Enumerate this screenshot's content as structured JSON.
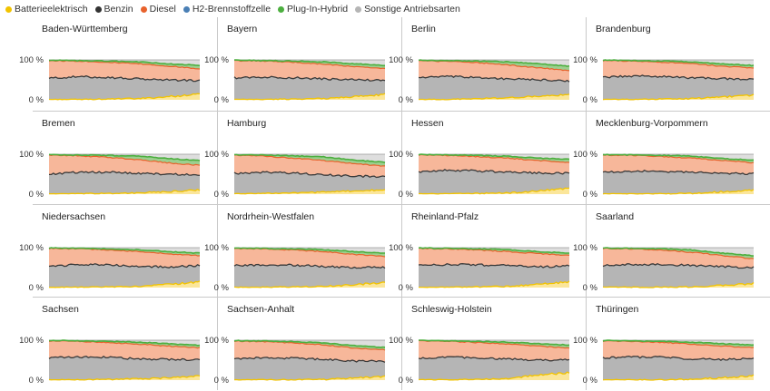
{
  "legend": [
    {
      "label": "Batterieelektrisch",
      "color": "#f2c300"
    },
    {
      "label": "Benzin",
      "color": "#333333"
    },
    {
      "label": "Diesel",
      "color": "#e8622c"
    },
    {
      "label": "H2-Brennstoffzelle",
      "color": "#4a7fb5"
    },
    {
      "label": "Plug-In-Hybrid",
      "color": "#4caf3f"
    },
    {
      "label": "Sonstige Antriebsarten",
      "color": "#b5b5b5"
    }
  ],
  "colors": {
    "battery_fill": "#fbe69a",
    "battery_line": "#f2c300",
    "benzin_fill": "#b5b5b5",
    "benzin_line": "#3a3a3a",
    "diesel_fill": "#f7b79a",
    "diesel_line": "#e8622c",
    "phev_line": "#4caf3f",
    "sonstige_fill": "#dedede",
    "sonstige_line": "#9a9a9a"
  },
  "y_tick_labels": [
    "100 %",
    "0 %"
  ],
  "chart_data": {
    "type": "area",
    "stacking": "percent",
    "ylim": [
      0,
      100
    ],
    "series_order": [
      "Batterieelektrisch",
      "Benzin",
      "Diesel",
      "H2-Brennstoffzelle",
      "Plug-In-Hybrid",
      "Sonstige Antriebsarten"
    ],
    "panels": [
      {
        "title": "Baden-Württemberg",
        "bev": [
          1,
          1,
          2,
          3,
          8,
          14
        ],
        "benzin_top": [
          54,
          58,
          56,
          52,
          50,
          48
        ],
        "diesel_top": [
          98,
          97,
          94,
          90,
          84,
          78
        ],
        "phev_top": [
          98,
          98,
          97,
          95,
          90,
          86
        ]
      },
      {
        "title": "Bayern",
        "bev": [
          1,
          1,
          2,
          3,
          8,
          13
        ],
        "benzin_top": [
          55,
          57,
          55,
          52,
          50,
          49
        ],
        "diesel_top": [
          98,
          97,
          94,
          89,
          83,
          78
        ],
        "phev_top": [
          98,
          98,
          97,
          95,
          90,
          86
        ]
      },
      {
        "title": "Berlin",
        "bev": [
          1,
          1,
          3,
          5,
          9,
          12
        ],
        "benzin_top": [
          56,
          58,
          56,
          52,
          50,
          47
        ],
        "diesel_top": [
          98,
          96,
          93,
          87,
          80,
          73
        ],
        "phev_top": [
          98,
          98,
          97,
          95,
          90,
          84
        ]
      },
      {
        "title": "Brandenburg",
        "bev": [
          1,
          1,
          2,
          3,
          7,
          12
        ],
        "benzin_top": [
          56,
          60,
          58,
          55,
          53,
          52
        ],
        "diesel_top": [
          98,
          97,
          94,
          90,
          84,
          80
        ],
        "phev_top": [
          98,
          98,
          97,
          95,
          90,
          86
        ]
      },
      {
        "title": "Bremen",
        "bev": [
          1,
          1,
          2,
          3,
          6,
          11
        ],
        "benzin_top": [
          50,
          55,
          55,
          52,
          50,
          48
        ],
        "diesel_top": [
          98,
          96,
          92,
          86,
          78,
          72
        ],
        "phev_top": [
          98,
          98,
          97,
          95,
          89,
          84
        ]
      },
      {
        "title": "Hamburg",
        "bev": [
          1,
          2,
          3,
          5,
          8,
          11
        ],
        "benzin_top": [
          52,
          55,
          53,
          48,
          45,
          44
        ],
        "diesel_top": [
          98,
          95,
          90,
          84,
          76,
          70
        ],
        "phev_top": [
          98,
          98,
          96,
          93,
          85,
          80
        ]
      },
      {
        "title": "Hessen",
        "bev": [
          1,
          1,
          2,
          3,
          8,
          15
        ],
        "benzin_top": [
          56,
          60,
          58,
          55,
          53,
          52
        ],
        "diesel_top": [
          98,
          97,
          94,
          90,
          84,
          80
        ],
        "phev_top": [
          98,
          98,
          97,
          95,
          90,
          87
        ]
      },
      {
        "title": "Mecklenburg-Vorpommern",
        "bev": [
          1,
          1,
          1,
          2,
          6,
          10
        ],
        "benzin_top": [
          55,
          58,
          57,
          54,
          52,
          51
        ],
        "diesel_top": [
          98,
          97,
          94,
          90,
          84,
          79
        ],
        "phev_top": [
          98,
          98,
          97,
          95,
          89,
          85
        ]
      },
      {
        "title": "Niedersachsen",
        "bev": [
          1,
          1,
          2,
          3,
          8,
          14
        ],
        "benzin_top": [
          52,
          58,
          57,
          53,
          52,
          55
        ],
        "diesel_top": [
          98,
          97,
          94,
          90,
          84,
          80
        ],
        "phev_top": [
          98,
          98,
          97,
          95,
          90,
          86
        ]
      },
      {
        "title": "Nordrhein-Westfalen",
        "bev": [
          1,
          1,
          2,
          3,
          7,
          13
        ],
        "benzin_top": [
          55,
          57,
          56,
          53,
          50,
          51
        ],
        "diesel_top": [
          98,
          97,
          94,
          90,
          83,
          78
        ],
        "phev_top": [
          98,
          98,
          97,
          95,
          90,
          86
        ]
      },
      {
        "title": "Rheinland-Pfalz",
        "bev": [
          1,
          1,
          2,
          3,
          8,
          14
        ],
        "benzin_top": [
          55,
          58,
          57,
          55,
          52,
          54
        ],
        "diesel_top": [
          98,
          97,
          94,
          90,
          85,
          80
        ],
        "phev_top": [
          98,
          98,
          97,
          95,
          90,
          86
        ]
      },
      {
        "title": "Saarland",
        "bev": [
          1,
          1,
          1,
          2,
          6,
          10
        ],
        "benzin_top": [
          55,
          58,
          58,
          55,
          52,
          50
        ],
        "diesel_top": [
          98,
          97,
          94,
          88,
          80,
          72
        ],
        "phev_top": [
          98,
          98,
          97,
          94,
          86,
          80
        ]
      },
      {
        "title": "Sachsen",
        "bev": [
          1,
          1,
          2,
          3,
          6,
          10
        ],
        "benzin_top": [
          56,
          58,
          57,
          53,
          52,
          50
        ],
        "diesel_top": [
          98,
          97,
          94,
          90,
          85,
          81
        ],
        "phev_top": [
          98,
          98,
          97,
          95,
          91,
          87
        ]
      },
      {
        "title": "Sachsen-Anhalt",
        "bev": [
          1,
          1,
          1,
          2,
          5,
          9
        ],
        "benzin_top": [
          54,
          56,
          55,
          52,
          48,
          47
        ],
        "diesel_top": [
          98,
          96,
          93,
          88,
          80,
          76
        ],
        "phev_top": [
          98,
          98,
          96,
          93,
          86,
          82
        ]
      },
      {
        "title": "Schleswig-Holstein",
        "bev": [
          1,
          1,
          2,
          4,
          14,
          18
        ],
        "benzin_top": [
          54,
          57,
          56,
          53,
          50,
          51
        ],
        "diesel_top": [
          98,
          97,
          94,
          90,
          85,
          80
        ],
        "phev_top": [
          98,
          98,
          97,
          95,
          91,
          88
        ]
      },
      {
        "title": "Thüringen",
        "bev": [
          1,
          1,
          1,
          2,
          6,
          11
        ],
        "benzin_top": [
          56,
          58,
          57,
          53,
          52,
          55
        ],
        "diesel_top": [
          98,
          97,
          94,
          90,
          85,
          82
        ],
        "phev_top": [
          98,
          98,
          97,
          95,
          91,
          88
        ]
      }
    ]
  }
}
